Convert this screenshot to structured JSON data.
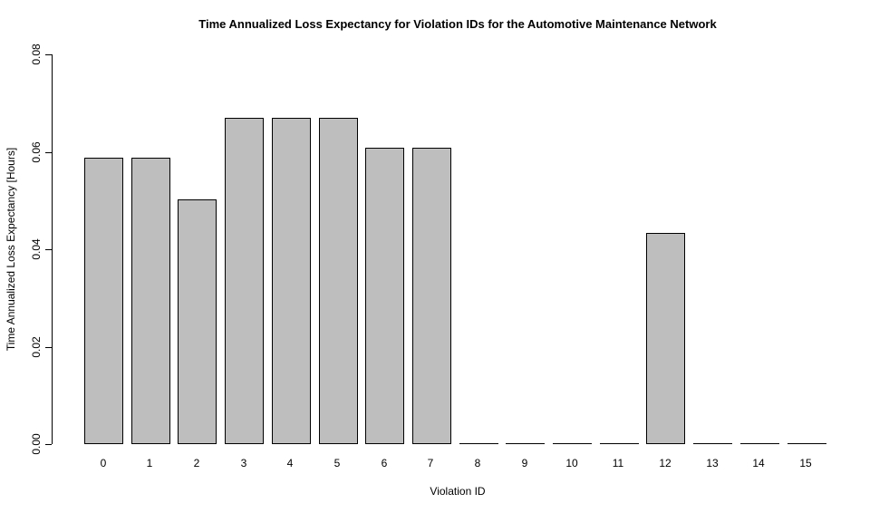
{
  "chart_data": {
    "type": "bar",
    "title": "Time Annualized Loss Expectancy for Violation IDs for the Automotive Maintenance Network",
    "xlabel": "Violation ID",
    "ylabel": "Time Annualized Loss Expectancy [Hours]",
    "categories": [
      "0",
      "1",
      "2",
      "3",
      "4",
      "5",
      "6",
      "7",
      "8",
      "9",
      "10",
      "11",
      "12",
      "13",
      "14",
      "15"
    ],
    "values": [
      0.0588,
      0.0588,
      0.0502,
      0.067,
      0.067,
      0.067,
      0.0608,
      0.0608,
      0,
      0,
      0,
      0,
      0.0434,
      0,
      0,
      0
    ],
    "ylim": [
      0,
      0.08
    ],
    "yticks": [
      0.0,
      0.02,
      0.04,
      0.06,
      0.08
    ],
    "ytick_labels": [
      "0.00",
      "0.02",
      "0.04",
      "0.06",
      "0.08"
    ],
    "bar_fill": "#BEBEBE",
    "bar_border": "#000000",
    "background": "#FFFFFF",
    "text_color": "#000000",
    "grid": false,
    "legend": false
  }
}
